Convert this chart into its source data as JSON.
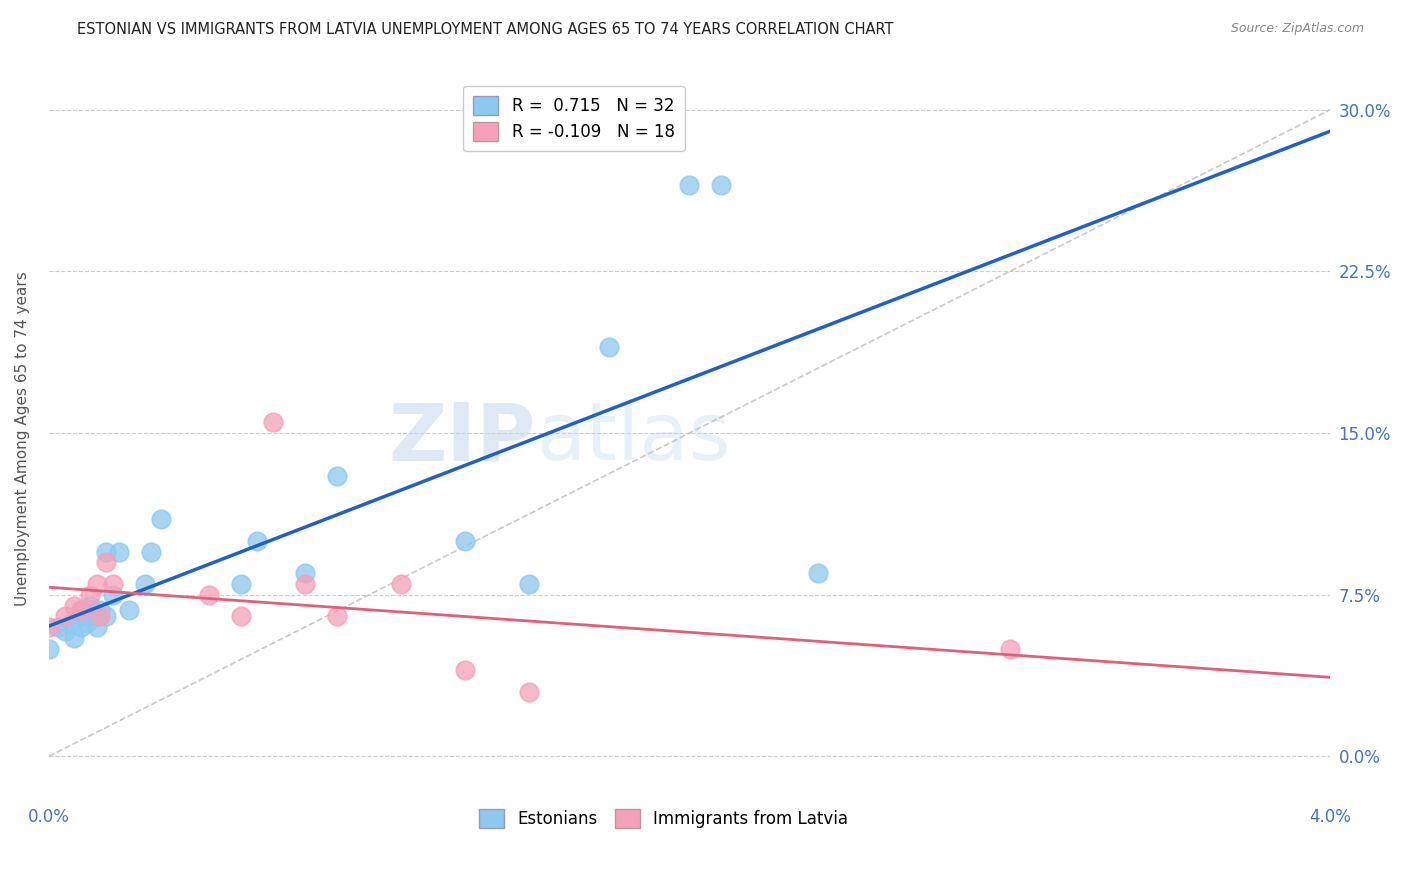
{
  "title": "ESTONIAN VS IMMIGRANTS FROM LATVIA UNEMPLOYMENT AMONG AGES 65 TO 74 YEARS CORRELATION CHART",
  "source": "Source: ZipAtlas.com",
  "ylabel": "Unemployment Among Ages 65 to 74 years",
  "xlim": [
    0.0,
    0.04
  ],
  "ylim": [
    -0.02,
    0.315
  ],
  "yticks": [
    0.0,
    0.075,
    0.15,
    0.225,
    0.3
  ],
  "ytick_labels": [
    "0.0%",
    "7.5%",
    "15.0%",
    "22.5%",
    "30.0%"
  ],
  "xticks": [
    0.0,
    0.01,
    0.02,
    0.03,
    0.04
  ],
  "xtick_labels": [
    "0.0%",
    "",
    "",
    "",
    "4.0%"
  ],
  "watermark_part1": "ZIP",
  "watermark_part2": "atlas",
  "estonians_R": 0.715,
  "estonians_N": 32,
  "immigrants_R": -0.109,
  "immigrants_N": 18,
  "estonian_color": "#8DC8F0",
  "immigrant_color": "#F5A0B8",
  "estonian_line_color": "#2060C8",
  "immigrant_line_color": "#E0607A",
  "diagonal_color": "#BBBBBB",
  "estonian_x": [
    0.0,
    0.0003,
    0.0005,
    0.0007,
    0.0008,
    0.001,
    0.001,
    0.001,
    0.0012,
    0.0013,
    0.0013,
    0.0015,
    0.0015,
    0.0016,
    0.0018,
    0.0018,
    0.002,
    0.0022,
    0.0025,
    0.003,
    0.0032,
    0.0035,
    0.006,
    0.0065,
    0.008,
    0.009,
    0.013,
    0.015,
    0.0175,
    0.02,
    0.021,
    0.024
  ],
  "estonian_y": [
    0.05,
    0.06,
    0.058,
    0.062,
    0.055,
    0.065,
    0.068,
    0.06,
    0.062,
    0.065,
    0.07,
    0.06,
    0.065,
    0.068,
    0.065,
    0.095,
    0.075,
    0.095,
    0.068,
    0.08,
    0.095,
    0.11,
    0.08,
    0.1,
    0.085,
    0.13,
    0.1,
    0.08,
    0.19,
    0.265,
    0.265,
    0.085
  ],
  "immigrant_x": [
    0.0,
    0.0005,
    0.0008,
    0.001,
    0.0013,
    0.0015,
    0.0016,
    0.0018,
    0.002,
    0.005,
    0.006,
    0.007,
    0.008,
    0.009,
    0.011,
    0.013,
    0.015,
    0.03
  ],
  "immigrant_y": [
    0.06,
    0.065,
    0.07,
    0.068,
    0.075,
    0.08,
    0.065,
    0.09,
    0.08,
    0.075,
    0.065,
    0.155,
    0.08,
    0.065,
    0.08,
    0.04,
    0.03,
    0.05
  ],
  "legend_label_est": "R =  0.715   N = 32",
  "legend_label_imm": "R = -0.109   N = 18",
  "bottom_legend_est": "Estonians",
  "bottom_legend_imm": "Immigrants from Latvia"
}
